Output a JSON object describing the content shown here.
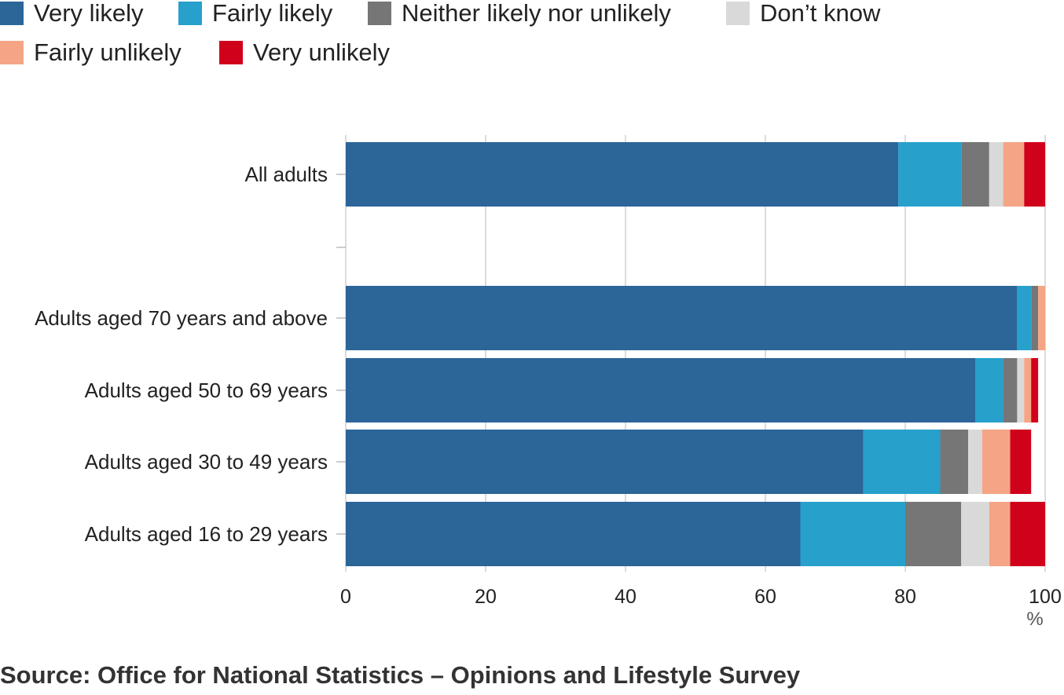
{
  "legend": [
    {
      "label": "Very likely",
      "color": "#2c6598"
    },
    {
      "label": "Fairly likely",
      "color": "#27a0cc"
    },
    {
      "label": "Neither likely nor unlikely",
      "color": "#767676"
    },
    {
      "label": "Don’t know",
      "color": "#d9d9d9"
    },
    {
      "label": "Fairly unlikely",
      "color": "#f5a585"
    },
    {
      "label": "Very unlikely",
      "color": "#d0021b"
    }
  ],
  "chart_data": {
    "type": "bar",
    "orientation": "horizontal",
    "stacked": true,
    "categories": [
      "All adults",
      "",
      "Adults aged 70 years and above",
      "Adults aged 50 to 69 years",
      "Adults aged 30 to 49 years",
      "Adults aged 16 to 29 years"
    ],
    "series": [
      {
        "name": "Very likely",
        "color": "#2c6598",
        "values": [
          79,
          0,
          96,
          90,
          74,
          65
        ]
      },
      {
        "name": "Fairly likely",
        "color": "#27a0cc",
        "values": [
          9,
          0,
          2,
          4,
          11,
          15
        ]
      },
      {
        "name": "Neither likely nor unlikely",
        "color": "#767676",
        "values": [
          4,
          0,
          1,
          2,
          4,
          8
        ]
      },
      {
        "name": "Don’t know",
        "color": "#d9d9d9",
        "values": [
          2,
          0,
          0,
          1,
          2,
          4
        ]
      },
      {
        "name": "Fairly unlikely",
        "color": "#f5a585",
        "values": [
          3,
          0,
          1,
          1,
          4,
          3
        ]
      },
      {
        "name": "Very unlikely",
        "color": "#d0021b",
        "values": [
          3,
          0,
          0,
          1,
          3,
          5
        ]
      }
    ],
    "xlim": [
      0,
      100
    ],
    "xticks": [
      0,
      20,
      40,
      60,
      80,
      100
    ],
    "xlabel": "%",
    "grid": true,
    "legend_position": "top-left"
  },
  "source": "Source: Office for National Statistics – Opinions and Lifestyle Survey"
}
